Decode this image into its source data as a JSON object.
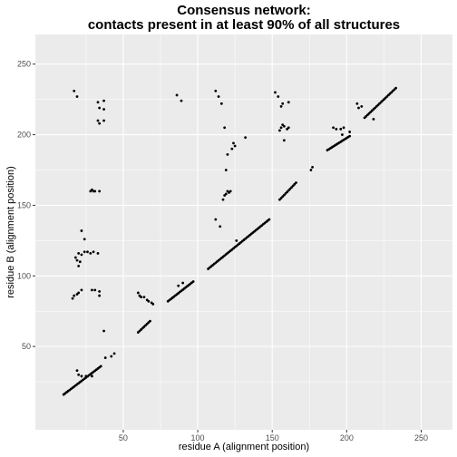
{
  "chart_data": {
    "type": "scatter",
    "title_line1": "Consensus network:",
    "title_line2": "contacts present in at least 90% of all structures",
    "xlabel": "residue A (alignment position)",
    "ylabel": "residue B (alignment position)",
    "xlim": [
      -9,
      271
    ],
    "ylim": [
      -9,
      271
    ],
    "x_ticks": [
      50,
      100,
      150,
      200,
      250
    ],
    "y_ticks": [
      50,
      100,
      150,
      200,
      250
    ],
    "x_minor": [
      25,
      75,
      125,
      175,
      225
    ],
    "y_minor": [
      25,
      75,
      125,
      175,
      225
    ],
    "point_color": "#000000",
    "panel_color": "#ebebeb",
    "grid_color": "#ffffff",
    "diagonal_runs": [
      [
        [
          10,
          16
        ],
        [
          35,
          36
        ]
      ],
      [
        [
          60,
          60
        ],
        [
          68,
          68
        ]
      ],
      [
        [
          80,
          82
        ],
        [
          97,
          96
        ]
      ],
      [
        [
          107,
          105
        ],
        [
          148,
          140
        ]
      ],
      [
        [
          155,
          154
        ],
        [
          166,
          166
        ]
      ],
      [
        [
          187,
          189
        ],
        [
          202,
          199
        ]
      ],
      [
        [
          212,
          212
        ],
        [
          233,
          233
        ]
      ]
    ],
    "points": [
      [
        17,
        231
      ],
      [
        19,
        227
      ],
      [
        33,
        223
      ],
      [
        37,
        224
      ],
      [
        34,
        219
      ],
      [
        37,
        218
      ],
      [
        33,
        210
      ],
      [
        34,
        208
      ],
      [
        37,
        210
      ],
      [
        28,
        160
      ],
      [
        29,
        161
      ],
      [
        30,
        160
      ],
      [
        31,
        160
      ],
      [
        34,
        160
      ],
      [
        22,
        132
      ],
      [
        24,
        126
      ],
      [
        20,
        116
      ],
      [
        22,
        115
      ],
      [
        24,
        117
      ],
      [
        26,
        117
      ],
      [
        28,
        116
      ],
      [
        30,
        117
      ],
      [
        33,
        116
      ],
      [
        18,
        113
      ],
      [
        19,
        111
      ],
      [
        21,
        110
      ],
      [
        20,
        107
      ],
      [
        16,
        84
      ],
      [
        17,
        86
      ],
      [
        19,
        87
      ],
      [
        20,
        88
      ],
      [
        22,
        90
      ],
      [
        29,
        90
      ],
      [
        31,
        90
      ],
      [
        34,
        89
      ],
      [
        34,
        86
      ],
      [
        37,
        61
      ],
      [
        19,
        33
      ],
      [
        20,
        30
      ],
      [
        22,
        29
      ],
      [
        25,
        29
      ],
      [
        29,
        29
      ],
      [
        38,
        42
      ],
      [
        42,
        43
      ],
      [
        44,
        45
      ],
      [
        60,
        88
      ],
      [
        61,
        86
      ],
      [
        62,
        85
      ],
      [
        64,
        85
      ],
      [
        66,
        83
      ],
      [
        67,
        82
      ],
      [
        69,
        81
      ],
      [
        70,
        80
      ],
      [
        86,
        228
      ],
      [
        89,
        224
      ],
      [
        87,
        93
      ],
      [
        90,
        95
      ],
      [
        112,
        231
      ],
      [
        114,
        227
      ],
      [
        116,
        222
      ],
      [
        118,
        205
      ],
      [
        112,
        140
      ],
      [
        115,
        135
      ],
      [
        117,
        154
      ],
      [
        118,
        157
      ],
      [
        119,
        158
      ],
      [
        120,
        160
      ],
      [
        121,
        159
      ],
      [
        122,
        160
      ],
      [
        119,
        175
      ],
      [
        120,
        186
      ],
      [
        123,
        190
      ],
      [
        125,
        192
      ],
      [
        124,
        194
      ],
      [
        132,
        198
      ],
      [
        126,
        125
      ],
      [
        152,
        230
      ],
      [
        154,
        227
      ],
      [
        157,
        222
      ],
      [
        156,
        220
      ],
      [
        161,
        223
      ],
      [
        155,
        203
      ],
      [
        156,
        205
      ],
      [
        157,
        207
      ],
      [
        158,
        206
      ],
      [
        160,
        204
      ],
      [
        161,
        205
      ],
      [
        158,
        196
      ],
      [
        176,
        175
      ],
      [
        177,
        177
      ],
      [
        191,
        205
      ],
      [
        193,
        204
      ],
      [
        196,
        204
      ],
      [
        198,
        205
      ],
      [
        207,
        222
      ],
      [
        208,
        219
      ],
      [
        210,
        220
      ],
      [
        218,
        211
      ],
      [
        197,
        200
      ],
      [
        202,
        202
      ]
    ]
  }
}
